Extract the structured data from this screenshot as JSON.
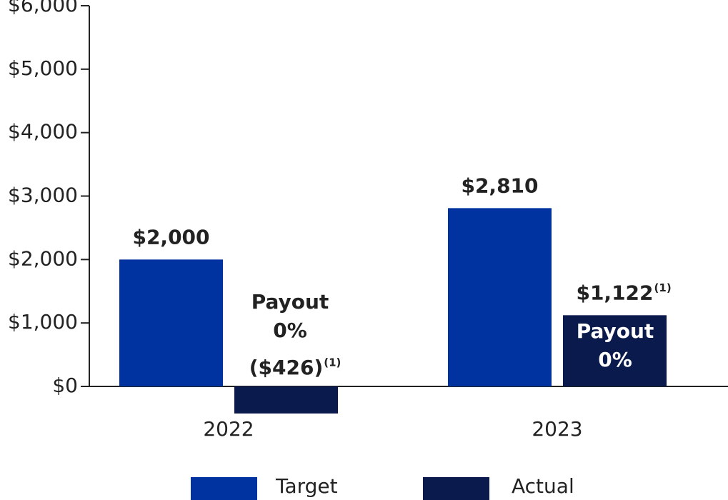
{
  "chart_data": {
    "type": "bar",
    "categories": [
      "2022",
      "2023"
    ],
    "series": [
      {
        "name": "Target",
        "color": "#0033a0",
        "values": [
          2000,
          2810
        ],
        "value_labels": [
          "$2,000",
          "$2,810"
        ]
      },
      {
        "name": "Actual",
        "color": "#0b1a4c",
        "values": [
          -426,
          1122
        ],
        "value_labels": [
          "($426)",
          "$1,122"
        ],
        "note": "(1)"
      }
    ],
    "annotations": [
      [
        "Payout",
        "0%"
      ],
      [
        "Payout",
        "0%"
      ]
    ],
    "ylim": [
      0,
      6000
    ],
    "yticks": [
      {
        "value": 0,
        "label": "$0"
      },
      {
        "value": 1000,
        "label": "$1,000"
      },
      {
        "value": 2000,
        "label": "$2,000"
      },
      {
        "value": 3000,
        "label": "$3,000"
      },
      {
        "value": 4000,
        "label": "$4,000"
      },
      {
        "value": 5000,
        "label": "$5,000"
      },
      {
        "value": 6000,
        "label": "$6,000"
      }
    ],
    "grid": false
  }
}
